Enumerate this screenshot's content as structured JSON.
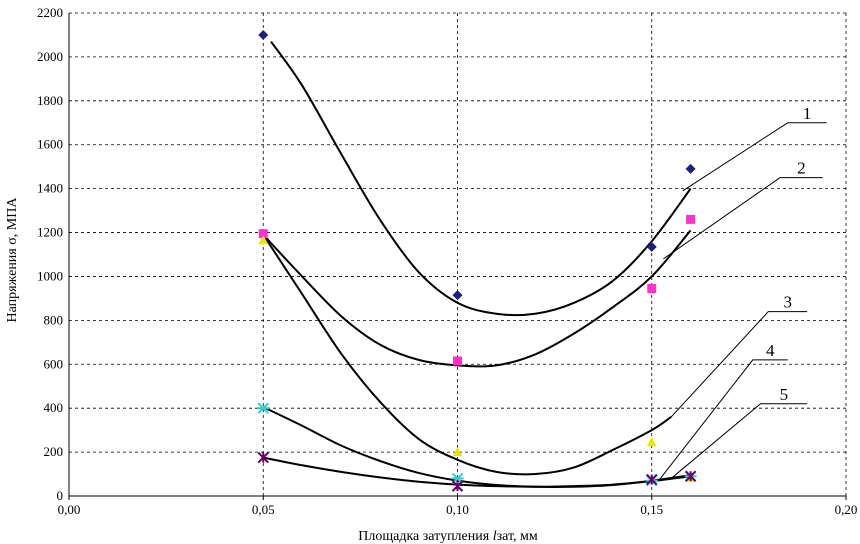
{
  "chart_data": {
    "type": "scatter",
    "title": "",
    "xlabel": "Площадка затупления ",
    "xlabel_italic": "l",
    "xlabel_suffix": "зат, мм",
    "ylabel": "Напряжения σ, МПА",
    "xlim": [
      0.0,
      0.2
    ],
    "ylim": [
      0,
      2200
    ],
    "x_ticks": [
      {
        "value": 0.0,
        "label": "0,00"
      },
      {
        "value": 0.05,
        "label": "0,05"
      },
      {
        "value": 0.1,
        "label": "0,10"
      },
      {
        "value": 0.15,
        "label": "0,15"
      },
      {
        "value": 0.2,
        "label": "0,20"
      }
    ],
    "y_ticks": [
      {
        "value": 0,
        "label": "0"
      },
      {
        "value": 200,
        "label": "200"
      },
      {
        "value": 400,
        "label": "400"
      },
      {
        "value": 600,
        "label": "600"
      },
      {
        "value": 800,
        "label": "800"
      },
      {
        "value": 1000,
        "label": "1000"
      },
      {
        "value": 1200,
        "label": "1200"
      },
      {
        "value": 1400,
        "label": "1400"
      },
      {
        "value": 1600,
        "label": "1600"
      },
      {
        "value": 1800,
        "label": "1800"
      },
      {
        "value": 2000,
        "label": "2000"
      },
      {
        "value": 2200,
        "label": "2200"
      }
    ],
    "grid": true,
    "series": [
      {
        "name": "1",
        "marker": "diamond",
        "color": "#1f1f7a",
        "points": [
          [
            0.05,
            2100
          ],
          [
            0.1,
            915
          ],
          [
            0.15,
            1135
          ],
          [
            0.16,
            1490
          ]
        ],
        "trend": [
          [
            0.052,
            2070
          ],
          [
            0.06,
            1870
          ],
          [
            0.07,
            1560
          ],
          [
            0.08,
            1260
          ],
          [
            0.09,
            1020
          ],
          [
            0.1,
            880
          ],
          [
            0.11,
            830
          ],
          [
            0.12,
            830
          ],
          [
            0.13,
            880
          ],
          [
            0.14,
            980
          ],
          [
            0.15,
            1160
          ],
          [
            0.16,
            1400
          ]
        ],
        "callout_anchor": [
          0.158,
          1390
        ],
        "callout_point": [
          0.185,
          1700
        ],
        "callout_end": [
          0.195,
          1700
        ]
      },
      {
        "name": "2",
        "marker": "square",
        "color": "#ff33cc",
        "points": [
          [
            0.05,
            1195
          ],
          [
            0.1,
            615
          ],
          [
            0.15,
            945
          ],
          [
            0.16,
            1260
          ]
        ],
        "trend": [
          [
            0.05,
            1190
          ],
          [
            0.06,
            1000
          ],
          [
            0.07,
            820
          ],
          [
            0.08,
            690
          ],
          [
            0.09,
            620
          ],
          [
            0.1,
            595
          ],
          [
            0.11,
            595
          ],
          [
            0.12,
            645
          ],
          [
            0.13,
            740
          ],
          [
            0.14,
            860
          ],
          [
            0.15,
            1000
          ],
          [
            0.16,
            1210
          ]
        ],
        "callout_anchor": [
          0.153,
          1080
        ],
        "callout_point": [
          0.183,
          1450
        ],
        "callout_end": [
          0.194,
          1450
        ]
      },
      {
        "name": "3",
        "marker": "triangle",
        "color": "#e6e600",
        "points": [
          [
            0.05,
            1165
          ],
          [
            0.1,
            200
          ],
          [
            0.15,
            245
          ],
          [
            0.16,
            85
          ]
        ],
        "trend": [
          [
            0.05,
            1190
          ],
          [
            0.06,
            920
          ],
          [
            0.07,
            650
          ],
          [
            0.08,
            430
          ],
          [
            0.09,
            260
          ],
          [
            0.1,
            165
          ],
          [
            0.11,
            110
          ],
          [
            0.12,
            100
          ],
          [
            0.13,
            130
          ],
          [
            0.14,
            210
          ],
          [
            0.15,
            300
          ],
          [
            0.155,
            360
          ]
        ],
        "callout_anchor": [
          0.155,
          360
        ],
        "callout_point": [
          0.18,
          840
        ],
        "callout_end": [
          0.19,
          840
        ]
      },
      {
        "name": "4",
        "marker": "asterisk",
        "color": "#33cccc",
        "points": [
          [
            0.05,
            400
          ],
          [
            0.1,
            80
          ],
          [
            0.15,
            70
          ],
          [
            0.16,
            90
          ]
        ],
        "trend": [
          [
            0.05,
            405
          ],
          [
            0.06,
            320
          ],
          [
            0.07,
            230
          ],
          [
            0.08,
            160
          ],
          [
            0.09,
            105
          ],
          [
            0.1,
            70
          ],
          [
            0.11,
            50
          ],
          [
            0.12,
            42
          ],
          [
            0.13,
            42
          ],
          [
            0.14,
            50
          ],
          [
            0.15,
            70
          ],
          [
            0.16,
            95
          ]
        ],
        "callout_anchor": [
          0.152,
          75
        ],
        "callout_point": [
          0.176,
          620
        ],
        "callout_end": [
          0.185,
          620
        ]
      },
      {
        "name": "5",
        "marker": "x-star",
        "color": "#660066",
        "points": [
          [
            0.05,
            175
          ],
          [
            0.1,
            45
          ],
          [
            0.15,
            75
          ],
          [
            0.16,
            90
          ]
        ],
        "trend": [
          [
            0.05,
            175
          ],
          [
            0.06,
            140
          ],
          [
            0.07,
            110
          ],
          [
            0.08,
            85
          ],
          [
            0.09,
            65
          ],
          [
            0.1,
            52
          ],
          [
            0.11,
            45
          ],
          [
            0.12,
            42
          ],
          [
            0.13,
            45
          ],
          [
            0.14,
            52
          ],
          [
            0.15,
            68
          ],
          [
            0.16,
            90
          ]
        ],
        "callout_anchor": [
          0.155,
          80
        ],
        "callout_point": [
          0.178,
          420
        ],
        "callout_end": [
          0.19,
          420
        ]
      }
    ]
  }
}
